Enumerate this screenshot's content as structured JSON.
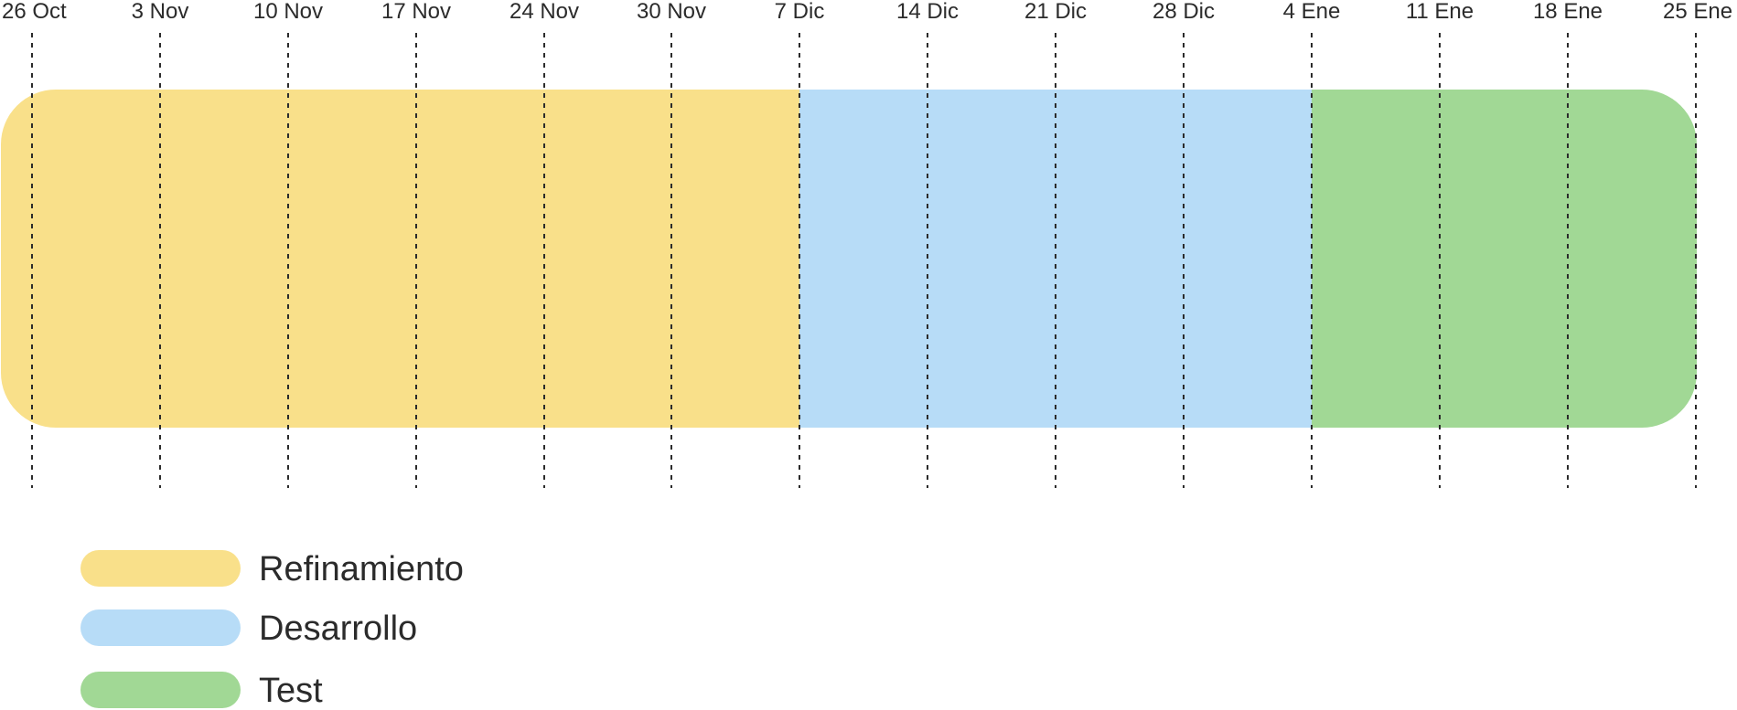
{
  "chart_data": {
    "type": "gantt",
    "title": "",
    "tick_labels": [
      "26 Oct",
      "3 Nov",
      "10 Nov",
      "17 Nov",
      "24 Nov",
      "30 Nov",
      "7 Dic",
      "14 Dic",
      "21 Dic",
      "28 Dic",
      "4 Ene",
      "11 Ene",
      "18 Ene",
      "25 Ene"
    ],
    "phases": [
      {
        "name": "Refinamiento",
        "start": "26 Oct",
        "end": "7 Dic",
        "color": "#f9e08a"
      },
      {
        "name": "Desarrollo",
        "start": "7 Dic",
        "end": "4 Ene",
        "color": "#b7dcf7"
      },
      {
        "name": "Test",
        "start": "4 Ene",
        "end": "25 Ene",
        "color": "#a1d895"
      }
    ],
    "grid": true,
    "legend_position": "bottom-left"
  }
}
